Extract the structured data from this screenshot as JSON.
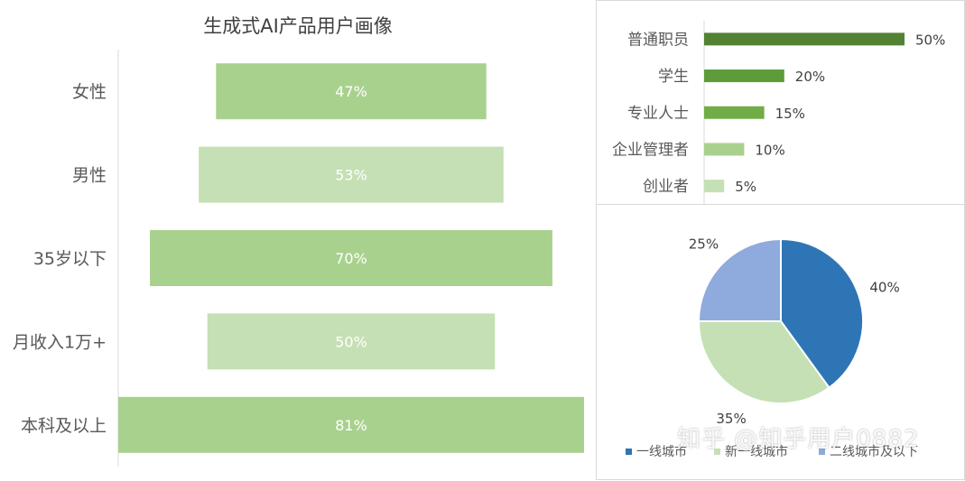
{
  "funnel": {
    "title": "生成式AI产品用户画像",
    "chart_data": {
      "type": "bar",
      "categories": [
        "女性",
        "男性",
        "35岁以下",
        "月收入1万+",
        "本科及以上"
      ],
      "values": [
        47,
        53,
        70,
        50,
        81
      ],
      "value_labels": [
        "47%",
        "53%",
        "70%",
        "50%",
        "81%"
      ],
      "xlim": [
        0,
        100
      ],
      "colors": [
        "#a9d18e",
        "#c5e0b4",
        "#a9d18e",
        "#c5e0b4",
        "#a9d18e"
      ]
    }
  },
  "occupation": {
    "chart_data": {
      "type": "bar",
      "categories": [
        "普通职员",
        "学生",
        "专业人士",
        "企业管理者",
        "创业者"
      ],
      "values": [
        50,
        20,
        15,
        10,
        5
      ],
      "value_labels": [
        "50%",
        "20%",
        "15%",
        "10%",
        "5%"
      ],
      "xlim": [
        0,
        50
      ],
      "colors": [
        "#548235",
        "#5e9c3a",
        "#70ad47",
        "#a9d18e",
        "#c5e0b4"
      ]
    }
  },
  "city": {
    "chart_data": {
      "type": "pie",
      "categories": [
        "一线城市",
        "新一线城市",
        "二线城市及以下"
      ],
      "values": [
        40,
        35,
        25
      ],
      "value_labels": [
        "40%",
        "35%",
        "25%"
      ],
      "colors": [
        "#2e75b6",
        "#c5e0b4",
        "#8faadc"
      ],
      "legend": "bottom"
    }
  },
  "watermark": "知乎 @知乎用户0882"
}
